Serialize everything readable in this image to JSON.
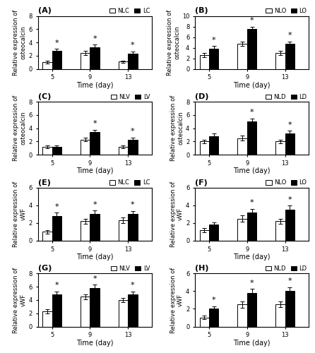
{
  "chart_data": [
    {
      "type": "bar",
      "title": "(A)",
      "xlabel": "Time (day)",
      "ylabel": "Relative expression of\nosteocalcin",
      "x": [
        5,
        9,
        13
      ],
      "xlim": [
        3.5,
        15.5
      ],
      "xticks": [
        5,
        9,
        13
      ],
      "ylim": [
        0,
        8
      ],
      "yticks": [
        0,
        2,
        4,
        6,
        8
      ],
      "legend": "upper right",
      "series": [
        {
          "name": "NLC",
          "color": "white",
          "values": [
            1.0,
            2.4,
            1.1
          ],
          "errors": [
            0.2,
            0.3,
            0.15
          ]
        },
        {
          "name": "LC",
          "color": "black",
          "values": [
            2.7,
            3.3,
            2.3
          ],
          "errors": [
            0.3,
            0.35,
            0.3
          ]
        }
      ],
      "annotations": [
        {
          "text": "*",
          "x": 5,
          "series": "LC"
        },
        {
          "text": "*",
          "x": 9,
          "series": "LC"
        },
        {
          "text": "*",
          "x": 13,
          "series": "LC"
        }
      ]
    },
    {
      "type": "bar",
      "title": "(B)",
      "xlabel": "Time (day)",
      "ylabel": "Relative expression of\nosteocalcin",
      "x": [
        5,
        9,
        13
      ],
      "xlim": [
        3.5,
        15.5
      ],
      "xticks": [
        5,
        9,
        13
      ],
      "ylim": [
        0,
        10
      ],
      "yticks": [
        0,
        2,
        4,
        6,
        8,
        10
      ],
      "legend": "upper right",
      "series": [
        {
          "name": "NLO",
          "color": "white",
          "values": [
            2.6,
            4.7,
            3.0
          ],
          "errors": [
            0.4,
            0.4,
            0.4
          ]
        },
        {
          "name": "LO",
          "color": "black",
          "values": [
            3.8,
            7.5,
            4.7
          ],
          "errors": [
            0.5,
            0.5,
            0.5
          ]
        }
      ],
      "annotations": [
        {
          "text": "*",
          "x": 5,
          "series": "LO"
        },
        {
          "text": "*",
          "x": 9,
          "series": "LO"
        },
        {
          "text": "*",
          "x": 13,
          "series": "LO"
        }
      ]
    },
    {
      "type": "bar",
      "title": "(C)",
      "xlabel": "Time (day)",
      "ylabel": "Relative expression of\nosteocalcin",
      "x": [
        5,
        9,
        13
      ],
      "xlim": [
        3.5,
        15.5
      ],
      "xticks": [
        5,
        9,
        13
      ],
      "ylim": [
        0,
        8
      ],
      "yticks": [
        0,
        2,
        4,
        6,
        8
      ],
      "legend": "upper right",
      "series": [
        {
          "name": "NLV",
          "color": "white",
          "values": [
            1.2,
            2.3,
            1.2
          ],
          "errors": [
            0.2,
            0.3,
            0.2
          ]
        },
        {
          "name": "LV",
          "color": "black",
          "values": [
            1.2,
            3.4,
            2.3
          ],
          "errors": [
            0.25,
            0.35,
            0.3
          ]
        }
      ],
      "annotations": [
        {
          "text": "*",
          "x": 9,
          "series": "LV"
        },
        {
          "text": "*",
          "x": 13,
          "series": "LV"
        }
      ]
    },
    {
      "type": "bar",
      "title": "(D)",
      "xlabel": "Time (day)",
      "ylabel": "Relative expression of\nosteocalcin",
      "x": [
        5,
        9,
        13
      ],
      "xlim": [
        3.5,
        15.5
      ],
      "xticks": [
        5,
        9,
        13
      ],
      "ylim": [
        0,
        8
      ],
      "yticks": [
        0,
        2,
        4,
        6,
        8
      ],
      "legend": "upper right",
      "series": [
        {
          "name": "NLD",
          "color": "white",
          "values": [
            2.0,
            2.5,
            2.0
          ],
          "errors": [
            0.3,
            0.35,
            0.3
          ]
        },
        {
          "name": "LD",
          "color": "black",
          "values": [
            2.8,
            5.0,
            3.2
          ],
          "errors": [
            0.4,
            0.5,
            0.4
          ]
        }
      ],
      "annotations": [
        {
          "text": "*",
          "x": 9,
          "series": "LD"
        },
        {
          "text": "*",
          "x": 13,
          "series": "LD"
        }
      ]
    },
    {
      "type": "bar",
      "title": "(E)",
      "xlabel": "Time (day)",
      "ylabel": "Relative expression of\nvWF",
      "x": [
        5,
        9,
        13
      ],
      "xlim": [
        3.5,
        15.5
      ],
      "xticks": [
        5,
        9,
        13
      ],
      "ylim": [
        0,
        6
      ],
      "yticks": [
        0,
        2,
        4,
        6
      ],
      "legend": "upper right",
      "series": [
        {
          "name": "NLC",
          "color": "white",
          "values": [
            1.0,
            2.2,
            2.3
          ],
          "errors": [
            0.2,
            0.3,
            0.3
          ]
        },
        {
          "name": "LC",
          "color": "black",
          "values": [
            2.8,
            3.0,
            3.0
          ],
          "errors": [
            0.35,
            0.4,
            0.35
          ]
        }
      ],
      "annotations": [
        {
          "text": "*",
          "x": 5,
          "series": "LC"
        },
        {
          "text": "*",
          "x": 9,
          "series": "LC"
        },
        {
          "text": "*",
          "x": 13,
          "series": "LC"
        }
      ]
    },
    {
      "type": "bar",
      "title": "(F)",
      "xlabel": "Time (day)",
      "ylabel": "Relative expression of\nvWF",
      "x": [
        5,
        9,
        13
      ],
      "xlim": [
        3.5,
        15.5
      ],
      "xticks": [
        5,
        9,
        13
      ],
      "ylim": [
        0,
        6
      ],
      "yticks": [
        0,
        2,
        4,
        6
      ],
      "legend": "upper right",
      "series": [
        {
          "name": "NLO",
          "color": "white",
          "values": [
            1.2,
            2.5,
            2.2
          ],
          "errors": [
            0.25,
            0.35,
            0.3
          ]
        },
        {
          "name": "LO",
          "color": "black",
          "values": [
            1.8,
            3.2,
            3.5
          ],
          "errors": [
            0.3,
            0.4,
            0.45
          ]
        }
      ],
      "annotations": [
        {
          "text": "*",
          "x": 9,
          "series": "LO"
        },
        {
          "text": "*",
          "x": 13,
          "series": "LO"
        }
      ]
    },
    {
      "type": "bar",
      "title": "(G)",
      "xlabel": "Time (day)",
      "ylabel": "Relative expression of\nvWF",
      "x": [
        5,
        9,
        13
      ],
      "xlim": [
        3.5,
        15.5
      ],
      "xticks": [
        5,
        9,
        13
      ],
      "ylim": [
        0,
        8
      ],
      "yticks": [
        0,
        2,
        4,
        6,
        8
      ],
      "legend": "upper right",
      "series": [
        {
          "name": "NLV",
          "color": "white",
          "values": [
            2.3,
            4.5,
            4.0
          ],
          "errors": [
            0.3,
            0.4,
            0.35
          ]
        },
        {
          "name": "LV",
          "color": "black",
          "values": [
            4.8,
            5.8,
            4.8
          ],
          "errors": [
            0.5,
            0.5,
            0.5
          ]
        }
      ],
      "annotations": [
        {
          "text": "*",
          "x": 5,
          "series": "LV"
        },
        {
          "text": "*",
          "x": 9,
          "series": "LV"
        },
        {
          "text": "*",
          "x": 13,
          "series": "LV"
        }
      ]
    },
    {
      "type": "bar",
      "title": "(H)",
      "xlabel": "Time (day)",
      "ylabel": "Relative expression of\nvWF",
      "x": [
        5,
        9,
        13
      ],
      "xlim": [
        3.5,
        15.5
      ],
      "xticks": [
        5,
        9,
        13
      ],
      "ylim": [
        0,
        6
      ],
      "yticks": [
        0,
        2,
        4,
        6
      ],
      "legend": "upper right",
      "series": [
        {
          "name": "NLD",
          "color": "white",
          "values": [
            1.0,
            2.5,
            2.5
          ],
          "errors": [
            0.2,
            0.35,
            0.3
          ]
        },
        {
          "name": "LD",
          "color": "black",
          "values": [
            2.0,
            3.8,
            4.0
          ],
          "errors": [
            0.3,
            0.45,
            0.45
          ]
        }
      ],
      "annotations": [
        {
          "text": "*",
          "x": 5,
          "series": "LD"
        },
        {
          "text": "*",
          "x": 9,
          "series": "LD"
        },
        {
          "text": "*",
          "x": 13,
          "series": "LD"
        }
      ]
    }
  ]
}
